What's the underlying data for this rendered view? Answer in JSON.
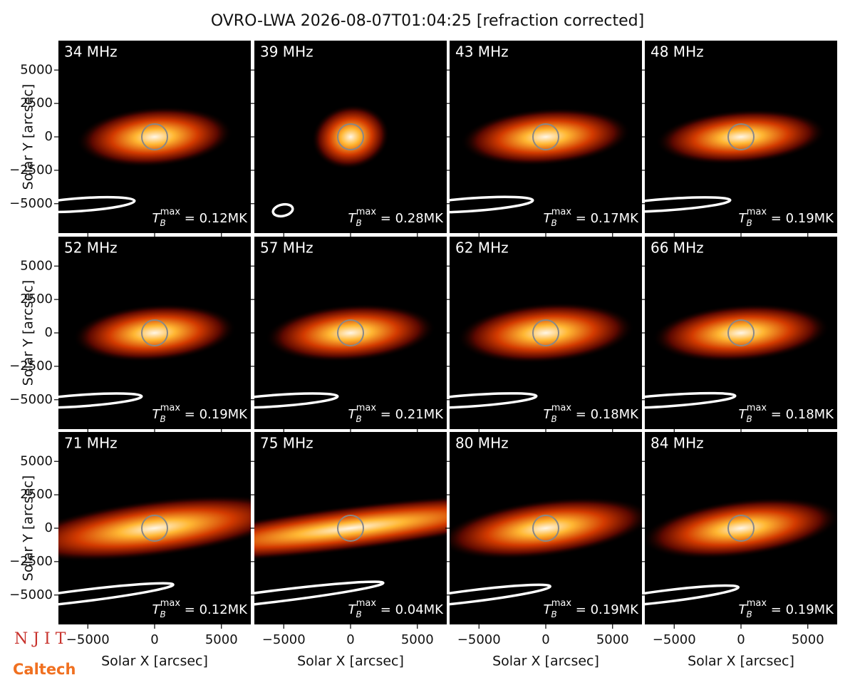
{
  "title": "OVRO-LWA 2026-08-07T01:04:25 [refraction corrected]",
  "xlabel": "Solar X [arcsec]",
  "ylabel": "Solar Y [arcsec]",
  "xlim": [
    -7200,
    7200
  ],
  "ylim": [
    -7200,
    7200
  ],
  "xticks": [
    {
      "value": -5000,
      "label": "−5000"
    },
    0,
    5000
  ],
  "yticks": [
    5000,
    2500,
    0,
    {
      "value": -2500,
      "label": "−2500"
    },
    {
      "value": -5000,
      "label": "−5000"
    }
  ],
  "tb_symbol": {
    "main": "T",
    "sub": "B",
    "sup": "max",
    "eq": " = "
  },
  "panels": [
    {
      "label": "34 MHz",
      "tb": "0.12MK"
    },
    {
      "label": "39 MHz",
      "tb": "0.28MK"
    },
    {
      "label": "43 MHz",
      "tb": "0.17MK"
    },
    {
      "label": "48 MHz",
      "tb": "0.19MK"
    },
    {
      "label": "52 MHz",
      "tb": "0.19MK"
    },
    {
      "label": "57 MHz",
      "tb": "0.21MK"
    },
    {
      "label": "62 MHz",
      "tb": "0.18MK"
    },
    {
      "label": "66 MHz",
      "tb": "0.18MK"
    },
    {
      "label": "71 MHz",
      "tb": "0.12MK"
    },
    {
      "label": "75 MHz",
      "tb": "0.04MK"
    },
    {
      "label": "80 MHz",
      "tb": "0.19MK"
    },
    {
      "label": "84 MHz",
      "tb": "0.19MK"
    }
  ],
  "logos": [
    "N J I T",
    "Caltech"
  ]
}
